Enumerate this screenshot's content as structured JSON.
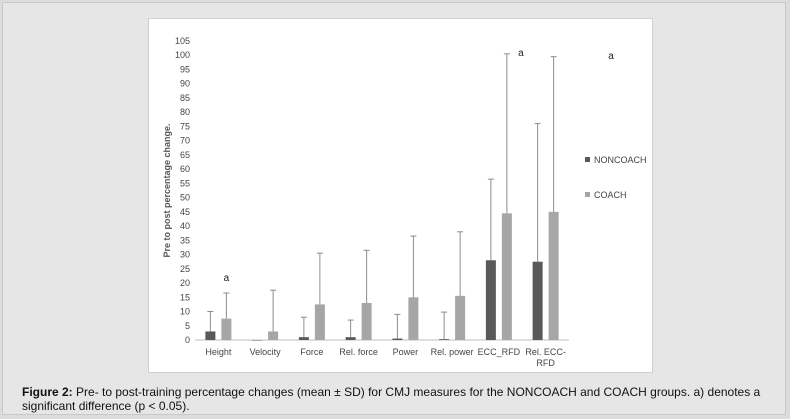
{
  "caption": {
    "label": "Figure 2:",
    "text": "Pre- to post-training percentage changes (mean ± SD) for CMJ measures for the NONCOACH and COACH groups. a) denotes a significant difference (p < 0.05)."
  },
  "chart_data": {
    "type": "bar",
    "title": "",
    "xlabel": "",
    "ylabel": "Pre to post percentage change.",
    "ylim": [
      0,
      105
    ],
    "yticks": [
      0,
      5,
      10,
      15,
      20,
      25,
      30,
      35,
      40,
      45,
      50,
      55,
      60,
      65,
      70,
      75,
      80,
      85,
      90,
      95,
      100,
      105
    ],
    "categories": [
      "Height",
      "Velocity",
      "Force",
      "Rel. force",
      "Power",
      "Rel. power",
      "ECC_RFD",
      "Rel. ECC-RFD"
    ],
    "series": [
      {
        "name": "NONCOACH",
        "color": "#595959",
        "values": [
          3,
          0,
          1,
          1,
          0.5,
          0.3,
          28,
          27.5
        ],
        "sd": [
          7,
          0,
          7,
          6,
          8.5,
          9.5,
          28.5,
          48.5
        ]
      },
      {
        "name": "COACH",
        "color": "#a6a6a6",
        "values": [
          7.5,
          3,
          12.5,
          13,
          15,
          15.5,
          44.5,
          45
        ],
        "sd": [
          9,
          14.5,
          18,
          18.5,
          21.5,
          22.5,
          56,
          54.5
        ]
      }
    ],
    "annotations": [
      {
        "category": "Height",
        "text": "a"
      },
      {
        "category": "ECC_RFD",
        "text": "a"
      },
      {
        "category": "Rel. ECC-RFD",
        "text": "a"
      }
    ],
    "legend_position": "right",
    "grid": false
  }
}
